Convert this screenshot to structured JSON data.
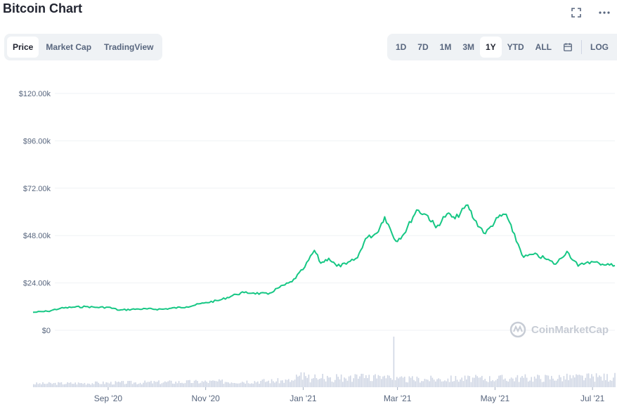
{
  "header": {
    "title": "Bitcoin Chart"
  },
  "icons": {
    "fullscreen": "fullscreen-icon",
    "more": "more-icon",
    "calendar": "calendar-icon"
  },
  "tabs": [
    {
      "label": "Price",
      "active": true
    },
    {
      "label": "Market Cap",
      "active": false
    },
    {
      "label": "TradingView",
      "active": false
    }
  ],
  "ranges": [
    {
      "label": "1D",
      "active": false
    },
    {
      "label": "7D",
      "active": false
    },
    {
      "label": "1M",
      "active": false
    },
    {
      "label": "3M",
      "active": false
    },
    {
      "label": "1Y",
      "active": true
    },
    {
      "label": "YTD",
      "active": false
    },
    {
      "label": "ALL",
      "active": false
    }
  ],
  "scale_toggle": "LOG",
  "watermark": "CoinMarketCap",
  "colors": {
    "line": "#16c784",
    "volume": "#cfd6e4",
    "grid": "#eff2f5"
  },
  "chart_data": {
    "type": "line",
    "title": "",
    "y_ticks": [
      "$0",
      "$24.00k",
      "$48.00k",
      "$72.00k",
      "$96.00k",
      "$120.00k"
    ],
    "ylim": [
      0,
      120000
    ],
    "x_ticks": [
      "Sep '20",
      "Nov '20",
      "Jan '21",
      "Mar '21",
      "May '21",
      "Jul '21"
    ],
    "x_tick_dates": [
      "2020-09-01",
      "2020-11-01",
      "2021-01-01",
      "2021-03-01",
      "2021-05-01",
      "2021-07-01"
    ],
    "xlim": [
      "2020-07-16",
      "2021-07-15"
    ],
    "grid": true,
    "series": [
      {
        "name": "",
        "points": [
          [
            "2020-07-16",
            9100
          ],
          [
            "2020-07-25",
            9600
          ],
          [
            "2020-08-02",
            11100
          ],
          [
            "2020-08-10",
            11700
          ],
          [
            "2020-08-18",
            12000
          ],
          [
            "2020-08-25",
            11600
          ],
          [
            "2020-09-01",
            11700
          ],
          [
            "2020-09-08",
            10200
          ],
          [
            "2020-09-20",
            10800
          ],
          [
            "2020-10-05",
            10700
          ],
          [
            "2020-10-20",
            11900
          ],
          [
            "2020-10-31",
            13800
          ],
          [
            "2020-11-10",
            15300
          ],
          [
            "2020-11-20",
            18200
          ],
          [
            "2020-11-25",
            19100
          ],
          [
            "2020-12-01",
            18900
          ],
          [
            "2020-12-10",
            18300
          ],
          [
            "2020-12-16",
            21300
          ],
          [
            "2020-12-25",
            24600
          ],
          [
            "2021-01-02",
            32000
          ],
          [
            "2021-01-08",
            40500
          ],
          [
            "2021-01-12",
            34000
          ],
          [
            "2021-01-17",
            36500
          ],
          [
            "2021-01-22",
            32500
          ],
          [
            "2021-01-28",
            33500
          ],
          [
            "2021-02-04",
            36800
          ],
          [
            "2021-02-09",
            46400
          ],
          [
            "2021-02-16",
            49200
          ],
          [
            "2021-02-21",
            57500
          ],
          [
            "2021-02-28",
            45200
          ],
          [
            "2021-03-05",
            48800
          ],
          [
            "2021-03-13",
            61000
          ],
          [
            "2021-03-20",
            58000
          ],
          [
            "2021-03-25",
            52000
          ],
          [
            "2021-04-01",
            59000
          ],
          [
            "2021-04-06",
            56500
          ],
          [
            "2021-04-14",
            63500
          ],
          [
            "2021-04-18",
            56000
          ],
          [
            "2021-04-25",
            49000
          ],
          [
            "2021-05-03",
            57200
          ],
          [
            "2021-05-08",
            58800
          ],
          [
            "2021-05-12",
            50000
          ],
          [
            "2021-05-19",
            37000
          ],
          [
            "2021-05-25",
            38500
          ],
          [
            "2021-06-01",
            36500
          ],
          [
            "2021-06-08",
            33500
          ],
          [
            "2021-06-15",
            40000
          ],
          [
            "2021-06-22",
            32500
          ],
          [
            "2021-06-28",
            34700
          ],
          [
            "2021-07-05",
            34000
          ],
          [
            "2021-07-15",
            32800
          ]
        ]
      }
    ],
    "volume": {
      "note": "",
      "spike_date": "2021-02-26"
    }
  }
}
